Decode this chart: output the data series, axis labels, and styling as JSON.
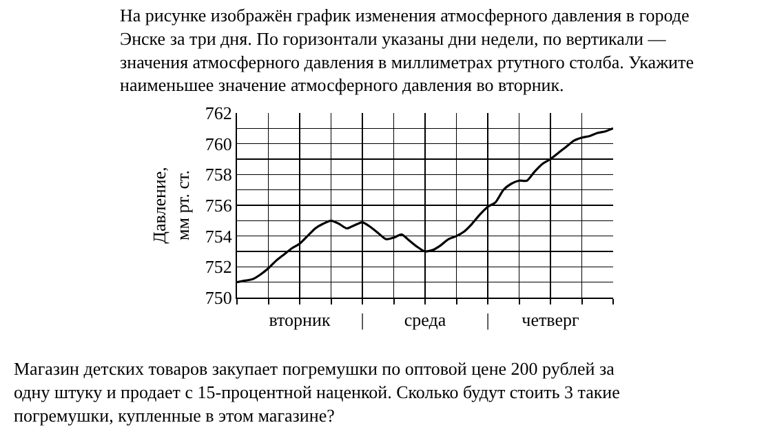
{
  "chart_data": {
    "type": "line",
    "title": "На рисунке изображён график изменения атмосферного давления в городе\nЭнске за три дня. По горизонтали указаны дни недели, по вертикали —\nзначения атмосферного давления в миллиметрах ртутного столба. Укажите\nнаименьшее значение атмосферного давления во вторник.",
    "ylabel": "Давление,\nмм рт. ст.",
    "annotations": [
      "Магазин детских товаров закупает погремушки по оптовой цене 200 рублей за\nодну штуку и продает с 15-процентной наценкой. Сколько будут стоить 3 такие\nпогремушки, купленные в этом магазине?"
    ],
    "categories": [
      null,
      null,
      null,
      null,
      null,
      null,
      null,
      null,
      "вторник",
      null,
      null,
      null,
      null,
      null,
      null,
      null,
      "|",
      null,
      null,
      null,
      null,
      null,
      null,
      null,
      "среда",
      null,
      null,
      null,
      null,
      null,
      null,
      null,
      "|",
      null,
      null,
      null,
      null,
      null,
      null,
      null,
      "четверг",
      null,
      null,
      null,
      null,
      null,
      null,
      null,
      null
    ],
    "values": [
      751.0,
      751.1,
      751.2,
      751.5,
      751.9,
      752.4,
      752.8,
      753.2,
      753.5,
      754.0,
      754.5,
      754.8,
      755.0,
      754.8,
      754.5,
      754.7,
      754.9,
      754.6,
      754.2,
      753.8,
      753.9,
      754.1,
      753.7,
      753.3,
      753.0,
      753.1,
      753.4,
      753.8,
      754.0,
      754.3,
      754.8,
      755.4,
      755.9,
      756.2,
      757.0,
      757.4,
      757.6,
      757.6,
      758.2,
      758.7,
      759.0,
      759.4,
      759.8,
      760.2,
      760.4,
      760.5,
      760.7,
      760.8,
      761.0
    ],
    "color": "#000000",
    "marker": "none",
    "line_style": "solid",
    "grid": true,
    "ylim": [
      750,
      762
    ],
    "yticks": [
      750,
      {
        "value": 751,
        "label": null
      },
      752,
      {
        "value": 753,
        "label": null
      },
      754,
      {
        "value": 755,
        "label": null
      },
      756,
      {
        "value": 757,
        "label": null
      },
      758,
      {
        "value": 759,
        "label": null
      },
      760,
      {
        "value": 761,
        "label": null
      },
      762
    ]
  }
}
